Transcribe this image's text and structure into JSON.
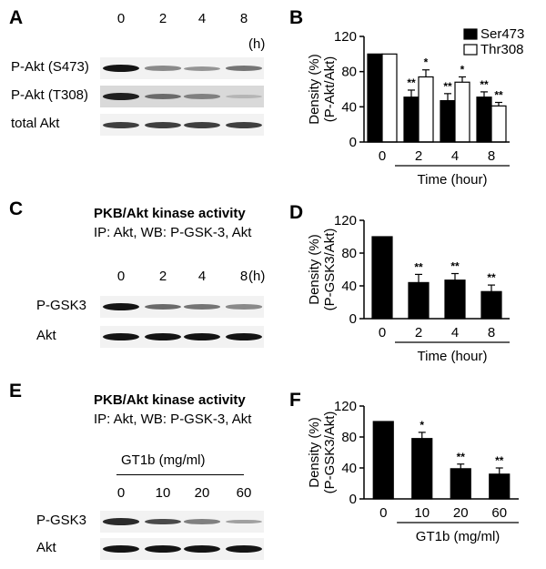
{
  "panels": {
    "A": {
      "letter": "A",
      "lanes": [
        "0",
        "2",
        "4",
        "8"
      ],
      "unit": "(h)",
      "rows": [
        {
          "label": "P-Akt (S473)",
          "intensity": [
            1.0,
            0.45,
            0.4,
            0.55
          ]
        },
        {
          "label": "P-Akt (T308)",
          "intensity": [
            0.95,
            0.6,
            0.5,
            0.25
          ]
        },
        {
          "label": "total Akt",
          "intensity": [
            0.8,
            0.8,
            0.8,
            0.8
          ]
        }
      ]
    },
    "B": {
      "letter": "B",
      "ylabel_line1": "Density (%)",
      "ylabel_line2": "(P-Akt/Akt)",
      "xlabel": "Time (hour)",
      "legend": [
        "Ser473",
        "Thr308"
      ]
    },
    "C": {
      "letter": "C",
      "title": "PKB/Akt kinase activity",
      "subtitle": "IP: Akt, WB: P-GSK-3, Akt",
      "lanes": [
        "0",
        "2",
        "4",
        "8"
      ],
      "unit": "(h)",
      "rows": [
        {
          "label": "P-GSK3",
          "intensity": [
            1.0,
            0.6,
            0.55,
            0.45
          ]
        },
        {
          "label": "Akt",
          "intensity": [
            1.0,
            1.0,
            1.0,
            1.0
          ]
        }
      ]
    },
    "D": {
      "letter": "D",
      "ylabel_line1": "Density (%)",
      "ylabel_line2": "(P-GSK3/Akt)",
      "xlabel": "Time (hour)"
    },
    "E": {
      "letter": "E",
      "title": "PKB/Akt kinase activity",
      "subtitle": "IP: Akt, WB: P-GSK-3, Akt",
      "treatment": "GT1b (mg/ml)",
      "lanes": [
        "0",
        "10",
        "20",
        "60"
      ],
      "rows": [
        {
          "label": "P-GSK3",
          "intensity": [
            0.9,
            0.75,
            0.5,
            0.35
          ]
        },
        {
          "label": "Akt",
          "intensity": [
            1.0,
            1.0,
            1.0,
            1.0
          ]
        }
      ]
    },
    "F": {
      "letter": "F",
      "ylabel_line1": "Density (%)",
      "ylabel_line2": "(P-GSK3/Akt)",
      "xlabel": "GT1b (mg/ml)"
    }
  },
  "chart_data": [
    {
      "id": "B",
      "type": "bar",
      "categories": [
        "0",
        "2",
        "4",
        "8"
      ],
      "series": [
        {
          "name": "Ser473",
          "color": "#000000",
          "values": [
            100,
            51,
            47,
            51
          ],
          "errors": [
            0,
            8,
            8,
            6
          ],
          "significance": [
            "",
            "**",
            "**",
            "**"
          ]
        },
        {
          "name": "Thr308",
          "color": "#ffffff",
          "values": [
            100,
            74,
            68,
            41
          ],
          "errors": [
            0,
            8,
            6,
            4
          ],
          "significance": [
            "",
            "*",
            "*",
            "**"
          ]
        }
      ],
      "xlabel": "Time (hour)",
      "ylabel": "Density (%) (P-Akt/Akt)",
      "ylim": [
        0,
        120
      ],
      "yticks": [
        0,
        40,
        80,
        120
      ],
      "legend_position": "top-right"
    },
    {
      "id": "D",
      "type": "bar",
      "categories": [
        "0",
        "2",
        "4",
        "8"
      ],
      "series": [
        {
          "name": "",
          "color": "#000000",
          "values": [
            100,
            44,
            47,
            33
          ],
          "errors": [
            0,
            10,
            8,
            8
          ],
          "significance": [
            "",
            "**",
            "**",
            "**"
          ]
        }
      ],
      "xlabel": "Time (hour)",
      "ylabel": "Density (%) (P-GSK3/Akt)",
      "ylim": [
        0,
        120
      ],
      "yticks": [
        0,
        40,
        80,
        120
      ]
    },
    {
      "id": "F",
      "type": "bar",
      "categories": [
        "0",
        "10",
        "20",
        "60"
      ],
      "series": [
        {
          "name": "",
          "color": "#000000",
          "values": [
            100,
            78,
            39,
            32
          ],
          "errors": [
            0,
            8,
            6,
            8
          ],
          "significance": [
            "",
            "*",
            "**",
            "**"
          ]
        }
      ],
      "xlabel": "GT1b (mg/ml)",
      "ylabel": "Density (%) (P-GSK3/Akt)",
      "ylim": [
        0,
        120
      ],
      "yticks": [
        0,
        40,
        80,
        120
      ]
    }
  ]
}
